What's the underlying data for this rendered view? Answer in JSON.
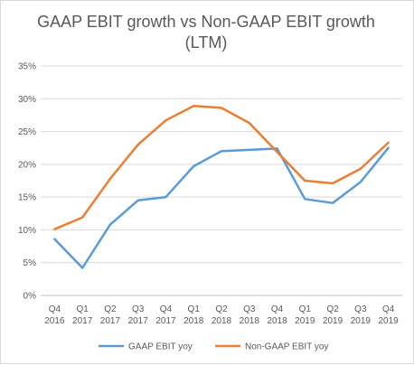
{
  "chart_data": {
    "type": "line",
    "title_line1": "GAAP EBIT growth vs Non-GAAP EBIT growth",
    "title_line2": "(LTM)",
    "xlabel": "",
    "ylabel": "",
    "ylim": [
      0,
      35
    ],
    "y_ticks": [
      "0%",
      "5%",
      "10%",
      "15%",
      "20%",
      "25%",
      "30%",
      "35%"
    ],
    "categories": [
      [
        "Q4",
        "2016"
      ],
      [
        "Q1",
        "2017"
      ],
      [
        "Q2",
        "2017"
      ],
      [
        "Q3",
        "2017"
      ],
      [
        "Q4",
        "2017"
      ],
      [
        "Q1",
        "2018"
      ],
      [
        "Q2",
        "2018"
      ],
      [
        "Q3",
        "2018"
      ],
      [
        "Q4",
        "2018"
      ],
      [
        "Q1",
        "2019"
      ],
      [
        "Q2",
        "2019"
      ],
      [
        "Q3",
        "2019"
      ],
      [
        "Q4",
        "2019"
      ]
    ],
    "grid": true,
    "legend_position": "bottom",
    "series": [
      {
        "name": "GAAP EBIT yoy",
        "color": "#5b9bd5",
        "values": [
          8.6,
          4.2,
          10.8,
          14.5,
          15.0,
          19.7,
          22.0,
          22.2,
          22.4,
          14.7,
          14.1,
          17.3,
          22.5
        ]
      },
      {
        "name": "Non-GAAP EBIT yoy",
        "color": "#ed7d31",
        "values": [
          10.1,
          11.9,
          17.8,
          23.0,
          26.7,
          28.9,
          28.6,
          26.3,
          21.9,
          17.5,
          17.1,
          19.3,
          23.3
        ]
      }
    ]
  }
}
